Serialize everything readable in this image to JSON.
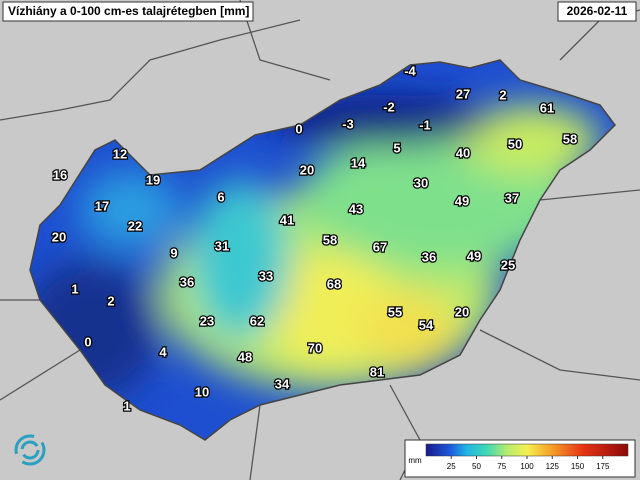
{
  "title": "Vízhiány a 0-100 cm-es talajrétegben [mm]",
  "date": "2026-02-11",
  "stations": [
    -4,
    27,
    2,
    61,
    -2,
    0,
    -3,
    -1,
    50,
    58,
    5,
    40,
    12,
    14,
    20,
    16,
    19,
    30,
    6,
    49,
    37,
    17,
    43,
    41,
    22,
    20,
    58,
    67,
    31,
    9,
    36,
    49,
    25,
    33,
    36,
    68,
    1,
    2,
    55,
    54,
    20,
    23,
    62,
    0,
    4,
    70,
    48,
    81,
    34,
    10,
    1
  ],
  "colorbar": {
    "unit": "mm",
    "range": [
      0,
      200
    ],
    "ticks": [
      25,
      50,
      75,
      100,
      125,
      150,
      175
    ]
  }
}
